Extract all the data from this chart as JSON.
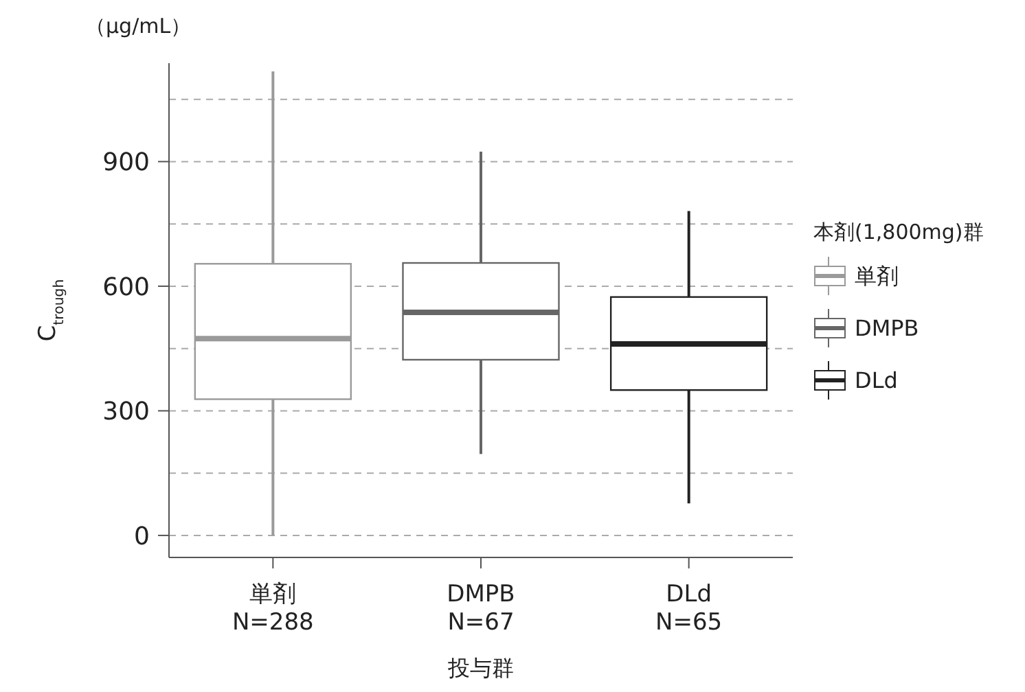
{
  "chart_data": {
    "type": "box",
    "xlabel": "投与群",
    "ylabel": "C$_{trough}$",
    "annotations": [
      "（μg/mL）"
    ],
    "legend_title": "本剤(1,800mg)群",
    "legend": "right",
    "grid": "y",
    "categories": [
      "単剤\nN=288",
      "DMPB\nN=67",
      "DLd\nN=65"
    ],
    "ylim": [
      -53,
      1137
    ],
    "yticks": [
      0,
      {
        "value": 150,
        "label": null
      },
      300,
      {
        "value": 450,
        "label": null
      },
      600,
      {
        "value": 750,
        "label": null
      },
      900,
      {
        "value": 1050,
        "label": null
      }
    ],
    "series": [
      {
        "name": "単剤",
        "color": "#9a9a9a",
        "boxes": [
          {
            "low": 0,
            "q1": 328,
            "median": 474,
            "q3": 654,
            "high": 1117
          },
          null,
          null
        ]
      },
      {
        "name": "DMPB",
        "color": "#666666",
        "boxes": [
          null,
          {
            "low": 196,
            "q1": 423,
            "median": 537,
            "q3": 656,
            "high": 924
          },
          null
        ]
      },
      {
        "name": "DLd",
        "color": "#222222",
        "boxes": [
          null,
          null,
          {
            "low": 77,
            "q1": 350,
            "median": 461,
            "q3": 574,
            "high": 781
          }
        ]
      }
    ]
  }
}
